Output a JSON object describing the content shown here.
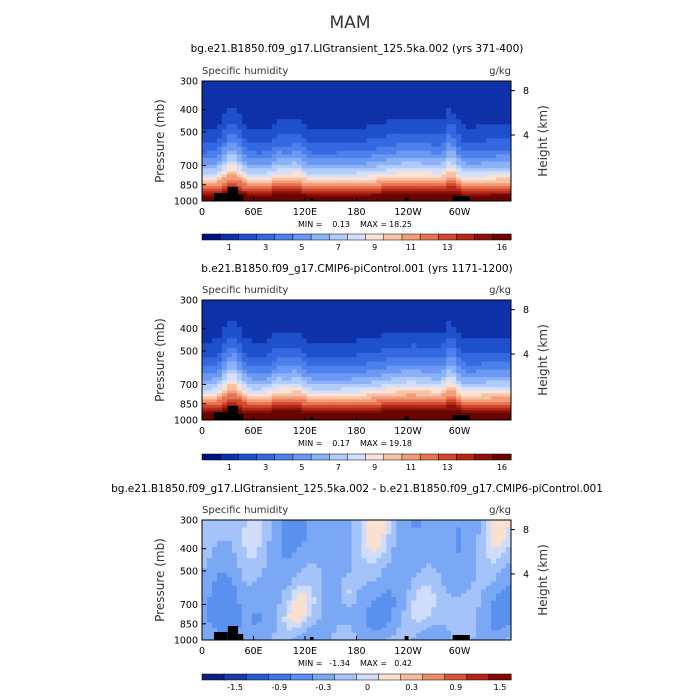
{
  "figure_title": "MAM",
  "palettes": {
    "abs": [
      "#00137a",
      "#0e30a8",
      "#1f50cc",
      "#3568e0",
      "#4c80ec",
      "#6a98f2",
      "#8cb2f8",
      "#b2ccfa",
      "#d4e0fb",
      "#fbe2d4",
      "#f8c2a6",
      "#f29c78",
      "#e67452",
      "#d24a2e",
      "#b42818",
      "#8c1208",
      "#6a0400"
    ],
    "diff": [
      "#0d1f80",
      "#1a3ca8",
      "#2a5ad0",
      "#3f75e4",
      "#5a90ee",
      "#7aa8f4",
      "#a4c3f8",
      "#cfdcfa",
      "#fae0cf",
      "#f6bc9c",
      "#ec8c66",
      "#d6563a",
      "#b2261a",
      "#820a04"
    ]
  },
  "terrain_color": "#000000",
  "chart_data": [
    {
      "type": "heatmap",
      "title": "bg.e21.B1850.f09_g17.LIGtransient_125.5ka.002 (yrs 371-400)",
      "variable": "Specific humidity",
      "units": "g/kg",
      "xlabel": "",
      "ylabel": "Pressure (mb)",
      "y2label": "Height (km)",
      "x_ticks": [
        "0",
        "60E",
        "120E",
        "180",
        "120W",
        "60W"
      ],
      "x_range": [
        0,
        360
      ],
      "x_tick_values": [
        0,
        60,
        120,
        180,
        240,
        300
      ],
      "y_ticks": [
        300,
        400,
        500,
        700,
        850,
        1000
      ],
      "y_range": [
        300,
        1000
      ],
      "height_ticks": [
        4,
        8
      ],
      "min_label": "MIN =",
      "min_value": "0.13",
      "max_label": "MAX =",
      "max_value": "18.25",
      "levels": [
        0,
        1,
        2,
        3,
        4,
        5,
        6,
        7,
        8,
        9,
        10,
        11,
        12,
        13,
        14,
        15,
        16
      ],
      "colorbar_labels": [
        "1",
        "3",
        "5",
        "7",
        "9",
        "11",
        "13",
        "16"
      ],
      "palette": "abs",
      "field": {
        "surface_max": 18.0,
        "top_min": 0.13,
        "trop_boost": 1.0
      },
      "ticks_up": false
    },
    {
      "type": "heatmap",
      "title": "b.e21.B1850.f09_g17.CMIP6-piControl.001 (yrs 1171-1200)",
      "variable": "Specific humidity",
      "units": "g/kg",
      "xlabel": "",
      "ylabel": "Pressure (mb)",
      "y2label": "Height (km)",
      "x_ticks": [
        "0",
        "60E",
        "120E",
        "180",
        "120W",
        "60W"
      ],
      "x_range": [
        0,
        360
      ],
      "x_tick_values": [
        0,
        60,
        120,
        180,
        240,
        300
      ],
      "y_ticks": [
        300,
        400,
        500,
        700,
        850,
        1000
      ],
      "y_range": [
        300,
        1000
      ],
      "height_ticks": [
        4,
        8
      ],
      "min_label": "MIN =",
      "min_value": "0.17",
      "max_label": "MAX =",
      "max_value": "19.18",
      "levels": [
        0,
        1,
        2,
        3,
        4,
        5,
        6,
        7,
        8,
        9,
        10,
        11,
        12,
        13,
        14,
        15,
        16
      ],
      "colorbar_labels": [
        "1",
        "3",
        "5",
        "7",
        "9",
        "11",
        "13",
        "16"
      ],
      "palette": "abs",
      "field": {
        "surface_max": 18.8,
        "top_min": 0.17,
        "trop_boost": 1.1
      },
      "ticks_up": false
    },
    {
      "type": "heatmap",
      "title": "bg.e21.B1850.f09_g17.LIGtransient_125.5ka.002 - b.e21.B1850.f09_g17.CMIP6-piControl.001",
      "variable": "Specific humidity",
      "units": "g/kg",
      "xlabel": "",
      "ylabel": "Pressure (mb)",
      "y2label": "Height (km)",
      "x_ticks": [
        "0",
        "60E",
        "120E",
        "180",
        "120W",
        "60W"
      ],
      "x_range": [
        0,
        360
      ],
      "x_tick_values": [
        0,
        60,
        120,
        180,
        240,
        300
      ],
      "y_ticks": [
        300,
        400,
        500,
        700,
        850,
        1000
      ],
      "y_range": [
        300,
        1000
      ],
      "height_ticks": [
        4,
        8
      ],
      "min_label": "MIN =",
      "min_value": "-1.34",
      "max_label": "MAX =",
      "max_value": "0.42",
      "levels": [
        -1.8,
        -1.5,
        -1.2,
        -0.9,
        -0.6,
        -0.3,
        -0.1,
        0,
        0.1,
        0.3,
        0.6,
        0.9,
        1.2,
        1.5,
        1.8
      ],
      "colorbar_labels": [
        "-1.5",
        "-0.9",
        "-0.3",
        "0",
        "0.3",
        "0.9",
        "1.5"
      ],
      "palette": "diff",
      "field": {
        "mean": -0.35,
        "amp": 0.3
      },
      "ticks_up": true
    }
  ]
}
